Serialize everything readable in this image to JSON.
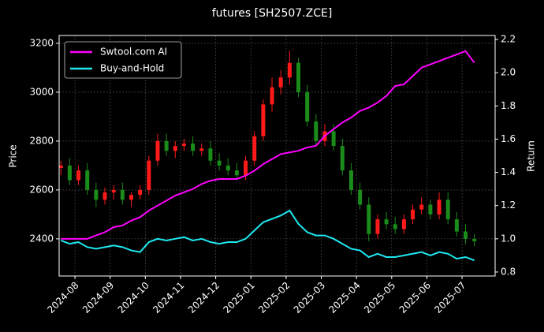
{
  "chart_data": {
    "type": "candlestick",
    "title": "futures [SH2507.ZCE]",
    "ylabel": "Price",
    "y2label": "Return",
    "x": [
      -0.4,
      -0.15,
      0.1,
      0.35,
      0.6,
      0.85,
      1.1,
      1.35,
      1.6,
      1.85,
      2.1,
      2.35,
      2.6,
      2.85,
      3.1,
      3.35,
      3.6,
      3.85,
      4.1,
      4.35,
      4.6,
      4.85,
      5.1,
      5.35,
      5.6,
      5.85,
      6.1,
      6.35,
      6.6,
      6.85,
      7.1,
      7.35,
      7.6,
      7.85,
      8.1,
      8.35,
      8.6,
      8.85,
      9.1,
      9.35,
      9.6,
      9.85,
      10.1,
      10.35,
      10.6,
      10.85,
      11.1,
      11.35
    ],
    "open": [
      2690,
      2700,
      2640,
      2680,
      2600,
      2560,
      2590,
      2600,
      2560,
      2580,
      2600,
      2720,
      2800,
      2760,
      2780,
      2790,
      2760,
      2770,
      2720,
      2700,
      2680,
      2660,
      2720,
      2820,
      2950,
      3020,
      3060,
      3120,
      3000,
      2880,
      2800,
      2840,
      2780,
      2680,
      2600,
      2540,
      2420,
      2480,
      2460,
      2440,
      2480,
      2520,
      2540,
      2500,
      2560,
      2480,
      2430,
      2400
    ],
    "high": [
      2720,
      2730,
      2700,
      2710,
      2630,
      2610,
      2620,
      2630,
      2590,
      2620,
      2740,
      2830,
      2830,
      2800,
      2810,
      2820,
      2790,
      2800,
      2750,
      2730,
      2710,
      2740,
      2840,
      2970,
      3060,
      3090,
      3170,
      3140,
      3030,
      2910,
      2870,
      2870,
      2810,
      2710,
      2630,
      2570,
      2500,
      2510,
      2490,
      2500,
      2540,
      2570,
      2560,
      2590,
      2590,
      2510,
      2460,
      2420
    ],
    "low": [
      2660,
      2620,
      2620,
      2580,
      2530,
      2540,
      2560,
      2540,
      2530,
      2560,
      2580,
      2700,
      2740,
      2730,
      2760,
      2740,
      2740,
      2700,
      2680,
      2660,
      2640,
      2640,
      2700,
      2800,
      2920,
      2990,
      3030,
      2980,
      2860,
      2780,
      2780,
      2760,
      2660,
      2580,
      2520,
      2390,
      2400,
      2440,
      2420,
      2420,
      2460,
      2500,
      2480,
      2480,
      2460,
      2410,
      2380,
      2370
    ],
    "close": [
      2700,
      2640,
      2680,
      2600,
      2560,
      2590,
      2600,
      2560,
      2580,
      2600,
      2720,
      2800,
      2760,
      2780,
      2790,
      2760,
      2770,
      2720,
      2700,
      2680,
      2660,
      2720,
      2820,
      2950,
      3020,
      3060,
      3120,
      3000,
      2880,
      2800,
      2840,
      2780,
      2680,
      2600,
      2540,
      2420,
      2480,
      2460,
      2440,
      2480,
      2520,
      2540,
      2500,
      2560,
      2480,
      2430,
      2400,
      2390
    ],
    "up_color": "#ff1a1a",
    "down_color": "#1a8c1a",
    "series": [
      {
        "name": "Swtool.com AI",
        "color": "#ff00ff",
        "axis": "y2",
        "values": [
          1.0,
          1.0,
          1.0,
          1.0,
          1.02,
          1.04,
          1.07,
          1.08,
          1.11,
          1.13,
          1.17,
          1.2,
          1.23,
          1.26,
          1.28,
          1.3,
          1.33,
          1.35,
          1.36,
          1.36,
          1.36,
          1.38,
          1.41,
          1.45,
          1.48,
          1.51,
          1.52,
          1.53,
          1.55,
          1.56,
          1.62,
          1.66,
          1.7,
          1.73,
          1.77,
          1.79,
          1.82,
          1.86,
          1.92,
          1.93,
          1.98,
          2.03,
          2.05,
          2.07,
          2.09,
          2.11,
          2.13,
          2.06
        ]
      },
      {
        "name": "Buy-and-Hold",
        "color": "#1ee8f0",
        "axis": "y2",
        "values": [
          0.99,
          0.97,
          0.98,
          0.95,
          0.94,
          0.95,
          0.96,
          0.95,
          0.93,
          0.92,
          0.98,
          1.0,
          0.99,
          1.0,
          1.01,
          0.99,
          1.0,
          0.98,
          0.97,
          0.98,
          0.98,
          1.0,
          1.05,
          1.1,
          1.12,
          1.14,
          1.17,
          1.09,
          1.04,
          1.02,
          1.02,
          1.0,
          0.97,
          0.94,
          0.93,
          0.89,
          0.91,
          0.89,
          0.89,
          0.9,
          0.91,
          0.92,
          0.9,
          0.92,
          0.91,
          0.88,
          0.89,
          0.87
        ]
      }
    ],
    "xlim": [
      -0.45,
      11.94
    ],
    "xticks": [
      {
        "value": 0,
        "label": "2024-08"
      },
      {
        "value": 1,
        "label": "2024-09"
      },
      {
        "value": 2,
        "label": "2024-10"
      },
      {
        "value": 3,
        "label": "2024-11"
      },
      {
        "value": 4,
        "label": "2024-12"
      },
      {
        "value": 5,
        "label": "2025-01"
      },
      {
        "value": 6,
        "label": "2025-02"
      },
      {
        "value": 7,
        "label": "2025-03"
      },
      {
        "value": 8,
        "label": "2025-04"
      },
      {
        "value": 9,
        "label": "2025-05"
      },
      {
        "value": 10,
        "label": "2025-06"
      },
      {
        "value": 11,
        "label": "2025-07"
      }
    ],
    "ylim": [
      2248,
      3232
    ],
    "yticks": [
      2400,
      2600,
      2800,
      3000,
      3200
    ],
    "y2lim": [
      0.776,
      2.224
    ],
    "y2ticks": [
      0.8,
      {
        "value": 1,
        "label": "1.0"
      },
      1.2,
      1.4,
      1.6,
      1.8,
      {
        "value": 2,
        "label": "2.0"
      },
      2.2
    ],
    "grid": true,
    "legend": "upper left"
  }
}
